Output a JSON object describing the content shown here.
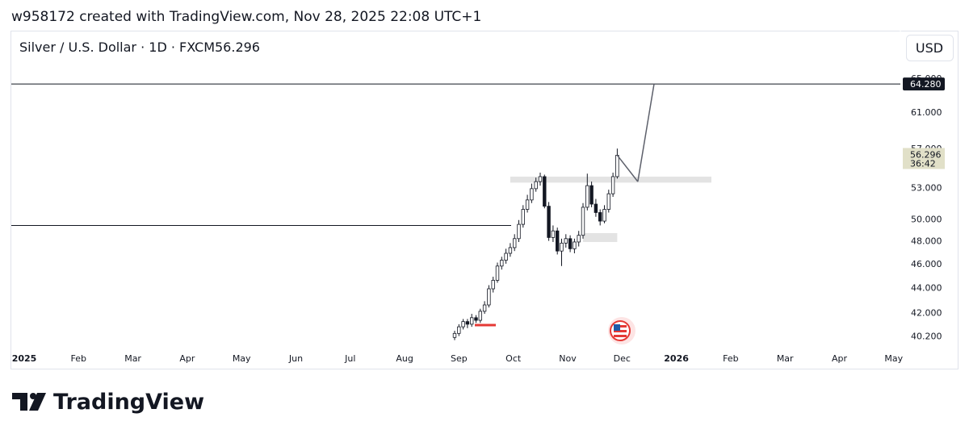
{
  "header": "w958172 created with TradingView.com, Nov 28, 2025 22:08 UTC+1",
  "footer_logo": "TradingView",
  "chart_data": {
    "type": "candlestick",
    "title": "Silver / U.S. Dollar · 1D · FXCM",
    "currency": "USD",
    "log_scale": true,
    "ylim": [
      39.4,
      71.0
    ],
    "yticks": [
      {
        "value": 65,
        "label": "65.000"
      },
      {
        "value": 61,
        "label": "61.000"
      },
      {
        "value": 57,
        "label": "57.000"
      },
      {
        "value": 53,
        "label": "53.000"
      },
      {
        "value": 50,
        "label": "50.000"
      },
      {
        "value": 48,
        "label": "48.000"
      },
      {
        "value": 46,
        "label": "46.000"
      },
      {
        "value": 44,
        "label": "44.000"
      },
      {
        "value": 42,
        "label": "42.000"
      },
      {
        "value": 40.2,
        "label": "40.200"
      }
    ],
    "xticks": [
      "2025",
      "Feb",
      "Mar",
      "Apr",
      "May",
      "Jun",
      "Jul",
      "Aug",
      "Sep",
      "Oct",
      "Nov",
      "Dec",
      "2026",
      "Feb",
      "Mar",
      "Apr",
      "May"
    ],
    "last_price": 56.296,
    "countdown": "36:42",
    "candles": {
      "open": [
        40.1,
        40.4,
        40.9,
        41.3,
        41.1,
        41.6,
        41.4,
        42.1,
        42.6,
        43.9,
        44.6,
        45.8,
        46.3,
        46.9,
        47.4,
        48.2,
        49.5,
        50.9,
        51.8,
        52.9,
        53.6,
        54.1,
        51.2,
        48.3,
        48.9,
        47.1,
        47.8,
        48.2,
        47.3,
        47.9,
        48.5,
        51.1,
        53.2,
        51.4,
        50.6,
        49.8,
        50.9,
        52.4,
        54.1
      ],
      "high": [
        40.6,
        41.1,
        41.5,
        41.5,
        41.9,
        41.8,
        42.3,
        42.9,
        44.2,
        44.9,
        46.1,
        46.6,
        47.3,
        47.8,
        48.6,
        49.9,
        51.3,
        52.3,
        53.4,
        54.0,
        54.5,
        54.3,
        51.6,
        49.4,
        49.2,
        48.2,
        48.6,
        48.5,
        48.2,
        48.9,
        51.5,
        54.4,
        53.6,
        51.9,
        50.9,
        51.3,
        52.8,
        54.5,
        57.0
      ],
      "low": [
        39.9,
        40.2,
        40.7,
        40.8,
        40.9,
        41.2,
        41.2,
        41.9,
        42.4,
        43.6,
        44.4,
        45.5,
        46.0,
        46.6,
        47.1,
        47.9,
        49.2,
        50.6,
        51.5,
        52.6,
        53.2,
        51.0,
        48.0,
        47.9,
        46.8,
        45.8,
        47.4,
        47.0,
        46.9,
        47.5,
        48.2,
        50.8,
        51.1,
        50.2,
        49.4,
        49.6,
        50.6,
        52.1,
        53.9
      ],
      "close": [
        40.4,
        40.9,
        41.3,
        41.1,
        41.6,
        41.4,
        42.1,
        42.6,
        43.9,
        44.6,
        45.8,
        46.3,
        46.9,
        47.4,
        48.2,
        49.5,
        50.9,
        51.8,
        52.9,
        53.6,
        54.1,
        51.2,
        48.3,
        48.9,
        47.1,
        47.8,
        48.2,
        47.3,
        47.9,
        48.5,
        51.1,
        53.2,
        51.4,
        50.6,
        49.8,
        50.9,
        52.4,
        54.1,
        56.3
      ]
    },
    "price_line": {
      "value": 64.28,
      "label": "64.280"
    },
    "horizontal_line": 49.4,
    "zones": [
      {
        "top": 54.1,
        "bottom": 53.5,
        "from": 13,
        "to": 60
      },
      {
        "top": 48.7,
        "bottom": 47.9,
        "from": 30,
        "to": 38
      }
    ],
    "projection": [
      {
        "i": 42.8,
        "price": 53.6
      },
      {
        "i": 46.6,
        "price": 64.28
      }
    ]
  }
}
